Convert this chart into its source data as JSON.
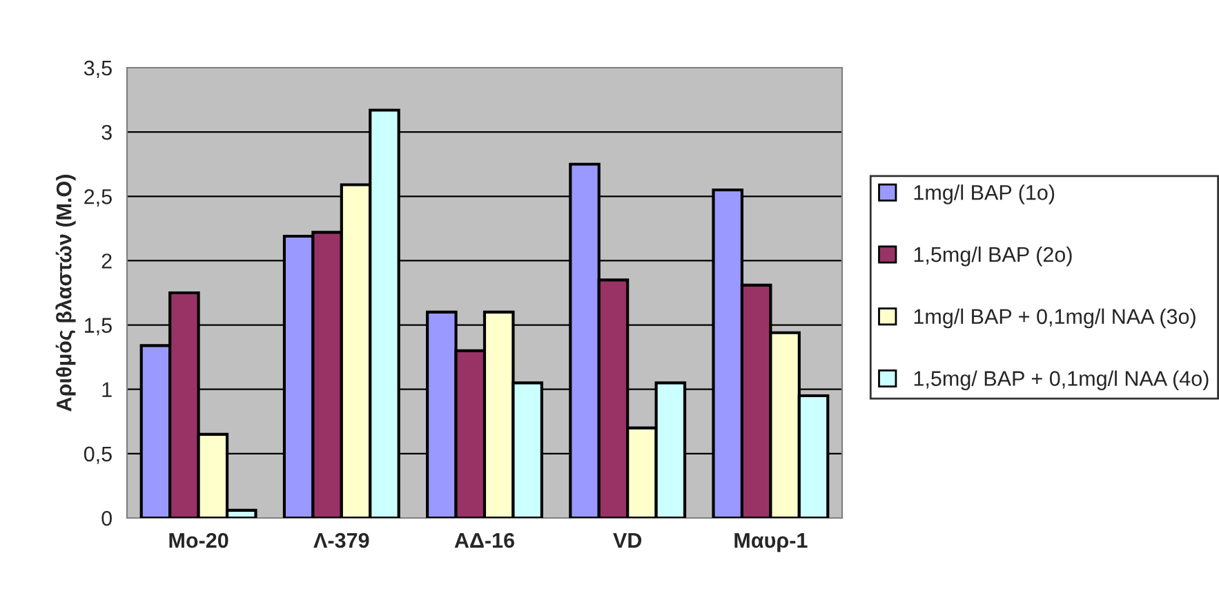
{
  "chart_data": {
    "type": "bar",
    "ylabel": "Αριθμός βλαστών (Μ.Ο)",
    "categories": [
      "Mo-20",
      "Λ-379",
      "ΑΔ-16",
      "VD",
      "Μαυρ-1"
    ],
    "series": [
      {
        "name": "1mg/l BAP (1o)",
        "color": "#9999ff",
        "values": [
          1.34,
          2.19,
          1.6,
          2.75,
          2.55
        ]
      },
      {
        "name": "1,5mg/l BAP (2o)",
        "color": "#993366",
        "values": [
          1.75,
          2.22,
          1.3,
          1.85,
          1.81
        ]
      },
      {
        "name": "1mg/l BAP + 0,1mg/l NAA (3o)",
        "color": "#ffffcc",
        "values": [
          0.65,
          2.59,
          1.6,
          0.7,
          1.44
        ]
      },
      {
        "name": "1,5mg/ BAP + 0,1mg/l NAA (4o)",
        "color": "#ccffff",
        "values": [
          0.06,
          3.17,
          1.05,
          1.05,
          0.95
        ]
      }
    ],
    "ylim": [
      0,
      3.5
    ],
    "yticks": [
      0,
      {
        "value": 0.5,
        "label": "0,5"
      },
      1,
      {
        "value": 1.5,
        "label": "1,5"
      },
      2,
      {
        "value": 2.5,
        "label": "2,5"
      },
      3,
      {
        "value": 3.5,
        "label": "3,5"
      }
    ],
    "grid": "y",
    "legend": "right"
  }
}
